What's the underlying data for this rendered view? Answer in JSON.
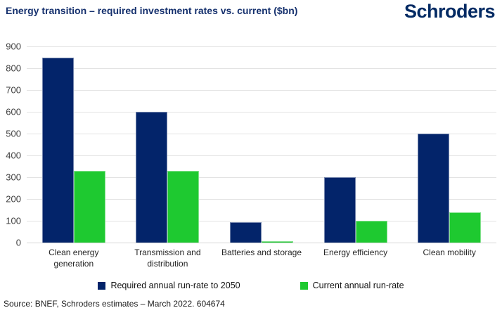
{
  "header": {
    "title": "Energy transition – required investment rates vs. current ($bn)",
    "logo": "Schroders"
  },
  "colors": {
    "brand_navy": "#032A63",
    "title_navy": "#16316E",
    "bar_navy": "#03246A",
    "bar_green": "#1EC930",
    "gridline": "#E3E3E3"
  },
  "chart_data": {
    "type": "bar",
    "title": "Energy transition – required investment rates vs. current ($bn)",
    "categories": [
      "Clean energy\ngeneration",
      "Transmission and\ndistribution",
      "Batteries and storage",
      "Energy efficiency",
      "Clean mobility"
    ],
    "series": [
      {
        "name": "Required annual run-rate to 2050",
        "color": "#03246A",
        "values": [
          850,
          600,
          95,
          300,
          500
        ]
      },
      {
        "name": "Current annual run-rate",
        "color": "#1EC930",
        "values": [
          330,
          330,
          5,
          100,
          140
        ]
      }
    ],
    "xlabel": "",
    "ylabel": "",
    "ylim": [
      0,
      900
    ],
    "ytick_step": 100,
    "grid": true,
    "legend_position": "bottom"
  },
  "footer": {
    "source": "Source: BNEF, Schroders estimates – March 2022. 604674"
  }
}
